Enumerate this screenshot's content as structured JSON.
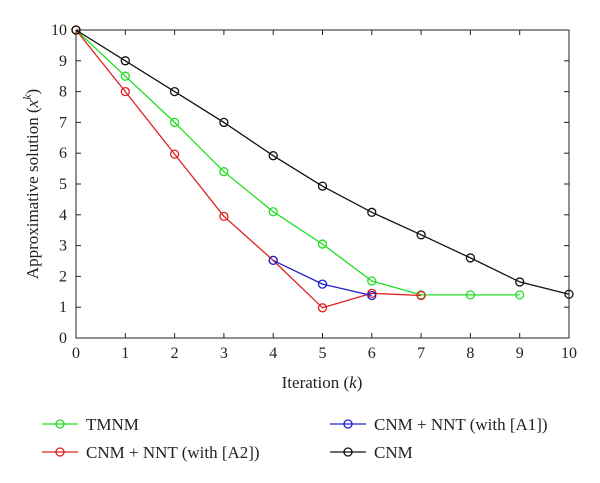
{
  "chart_data": {
    "type": "line",
    "xlabel_main": "Iteration (",
    "xlabel_var": "k",
    "xlabel_end": ")",
    "ylabel_main": "Approximative solution (",
    "ylabel_var": "x",
    "ylabel_sup": "k",
    "ylabel_end": ")",
    "xlim": [
      0,
      10
    ],
    "ylim": [
      0,
      10
    ],
    "xticks": [
      "0",
      "1",
      "2",
      "3",
      "4",
      "5",
      "6",
      "7",
      "8",
      "9",
      "10"
    ],
    "yticks": [
      "0",
      "1",
      "2",
      "3",
      "4",
      "5",
      "6",
      "7",
      "8",
      "9",
      "10"
    ],
    "grid": false,
    "legend_position": "bottom",
    "series": [
      {
        "name": "TMNM",
        "color": "#22dd22",
        "x": [
          0,
          1,
          2,
          3,
          4,
          5,
          6,
          7,
          8,
          9
        ],
        "y": [
          10,
          8.5,
          7.0,
          5.4,
          4.1,
          3.05,
          1.85,
          1.4,
          1.4,
          1.4
        ]
      },
      {
        "name": "CNM + NNT (with [A2])",
        "color": "#e02020",
        "x": [
          0,
          1,
          2,
          3,
          4,
          5,
          6,
          7
        ],
        "y": [
          10,
          8.0,
          5.97,
          3.95,
          2.52,
          0.98,
          1.45,
          1.38
        ]
      },
      {
        "name": "CNM + NNT (with [A1])",
        "color": "#2020cc",
        "x": [
          4,
          5,
          6
        ],
        "y": [
          2.52,
          1.75,
          1.38
        ]
      },
      {
        "name": "CNM",
        "color": "#111111",
        "x": [
          0,
          1,
          2,
          3,
          4,
          5,
          6,
          7,
          8,
          9,
          10
        ],
        "y": [
          10,
          9.0,
          8.0,
          7.0,
          5.92,
          4.93,
          4.08,
          3.35,
          2.6,
          1.82,
          1.42
        ]
      }
    ]
  }
}
